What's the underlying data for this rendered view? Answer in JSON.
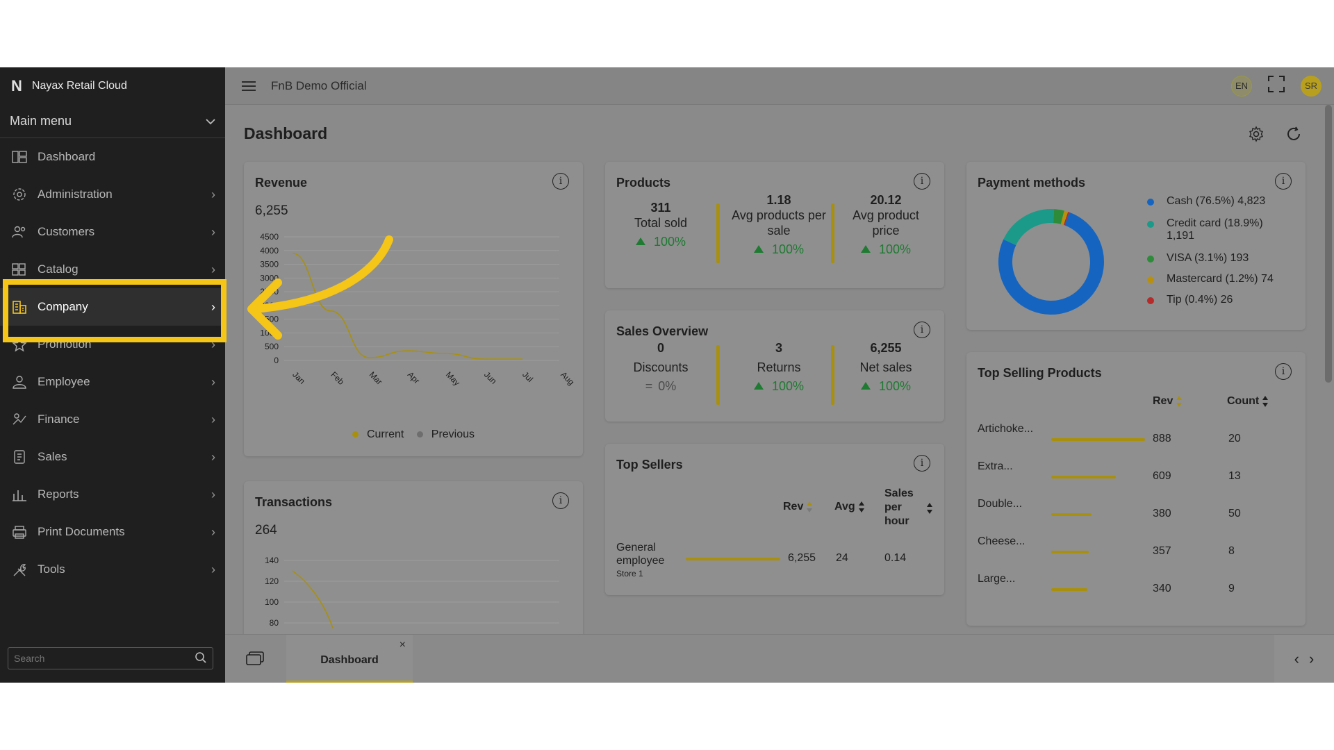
{
  "app": {
    "brand": "Nayax Retail Cloud",
    "logo": "N",
    "org": "FnB Demo Official",
    "lang": "EN",
    "user_initials": "SR"
  },
  "sidebar": {
    "main_menu": "Main menu",
    "items": [
      {
        "label": "Dashboard",
        "icon": "dashboard-icon"
      },
      {
        "label": "Administration",
        "icon": "gear-icon"
      },
      {
        "label": "Customers",
        "icon": "users-icon"
      },
      {
        "label": "Catalog",
        "icon": "catalog-icon"
      },
      {
        "label": "Company",
        "icon": "building-icon"
      },
      {
        "label": "Promotion",
        "icon": "star-icon"
      },
      {
        "label": "Employee",
        "icon": "person-icon"
      },
      {
        "label": "Finance",
        "icon": "finance-icon"
      },
      {
        "label": "Sales",
        "icon": "sales-icon"
      },
      {
        "label": "Reports",
        "icon": "bar-chart-icon"
      },
      {
        "label": "Print Documents",
        "icon": "printer-icon"
      },
      {
        "label": "Tools",
        "icon": "tools-icon"
      }
    ],
    "search_placeholder": "Search"
  },
  "page": {
    "title": "Dashboard"
  },
  "revenue": {
    "title": "Revenue",
    "total": "6,255",
    "legend_current": "Current",
    "legend_previous": "Previous"
  },
  "products": {
    "title": "Products",
    "stats": [
      {
        "value": "311",
        "label": "Total sold",
        "change": "100%"
      },
      {
        "value": "1.18",
        "label": "Avg products per sale",
        "change": "100%"
      },
      {
        "value": "20.12",
        "label": "Avg product price",
        "change": "100%"
      }
    ]
  },
  "sales_overview": {
    "title": "Sales Overview",
    "stats": [
      {
        "value": "0",
        "label": "Discounts",
        "change": "0%",
        "neutral": true
      },
      {
        "value": "3",
        "label": "Returns",
        "change": "100%"
      },
      {
        "value": "6,255",
        "label": "Net sales",
        "change": "100%"
      }
    ]
  },
  "payment_methods": {
    "title": "Payment methods",
    "items": [
      {
        "label": "Cash (76.5%) 4,823",
        "color": "#1565c0",
        "pct": 76.5
      },
      {
        "label": "Credit card (18.9%) 1,191",
        "color": "#1b9a8a",
        "pct": 18.9
      },
      {
        "label": "VISA (3.1%) 193",
        "color": "#2e8b3a",
        "pct": 3.1
      },
      {
        "label": "Mastercard (1.2%) 74",
        "color": "#b8900e",
        "pct": 1.2
      },
      {
        "label": "Tip (0.4%) 26",
        "color": "#b52a2a",
        "pct": 0.4
      }
    ]
  },
  "transactions": {
    "title": "Transactions",
    "total": "264"
  },
  "top_sellers": {
    "title": "Top Sellers",
    "headers": {
      "rev": "Rev",
      "avg": "Avg",
      "sales_per_hour": "Sales per hour"
    },
    "rows": [
      {
        "name": "General employee",
        "store": "Store 1",
        "rev": "6,255",
        "avg": "24",
        "sph": "0.14",
        "share": 1.0
      }
    ]
  },
  "top_products": {
    "title": "Top Selling Products",
    "headers": {
      "rev": "Rev",
      "count": "Count"
    },
    "rows": [
      {
        "name": "Artichoke...",
        "rev": "888",
        "count": "20",
        "share": 1.0
      },
      {
        "name": "Extra...",
        "rev": "609",
        "count": "13",
        "share": 0.686
      },
      {
        "name": "Double...",
        "rev": "380",
        "count": "50",
        "share": 0.428
      },
      {
        "name": "Cheese...",
        "rev": "357",
        "count": "8",
        "share": 0.402
      },
      {
        "name": "Large...",
        "rev": "340",
        "count": "9",
        "share": 0.383
      }
    ]
  },
  "bottom_tab": {
    "label": "Dashboard",
    "close": "×"
  },
  "chart_data": [
    {
      "type": "line",
      "title": "Revenue",
      "categories": [
        "Jan",
        "Feb",
        "Mar",
        "Apr",
        "May",
        "Jun",
        "Jul",
        "Aug"
      ],
      "yticks": [
        0,
        500,
        1000,
        1500,
        2000,
        2500,
        3000,
        3500,
        4000,
        4500
      ],
      "ylim": [
        0,
        4500
      ],
      "series": [
        {
          "name": "Current",
          "color": "#a8900e",
          "values": [
            3900,
            1800,
            100,
            350,
            250,
            50,
            50,
            null
          ]
        }
      ],
      "legend": "bottom"
    },
    {
      "type": "line",
      "title": "Transactions",
      "yticks": [
        80,
        100,
        120,
        140
      ],
      "ylim": [
        0,
        140
      ],
      "series": [
        {
          "name": "Current",
          "color": "#a8900e",
          "values": [
            130,
            75
          ]
        }
      ]
    }
  ]
}
